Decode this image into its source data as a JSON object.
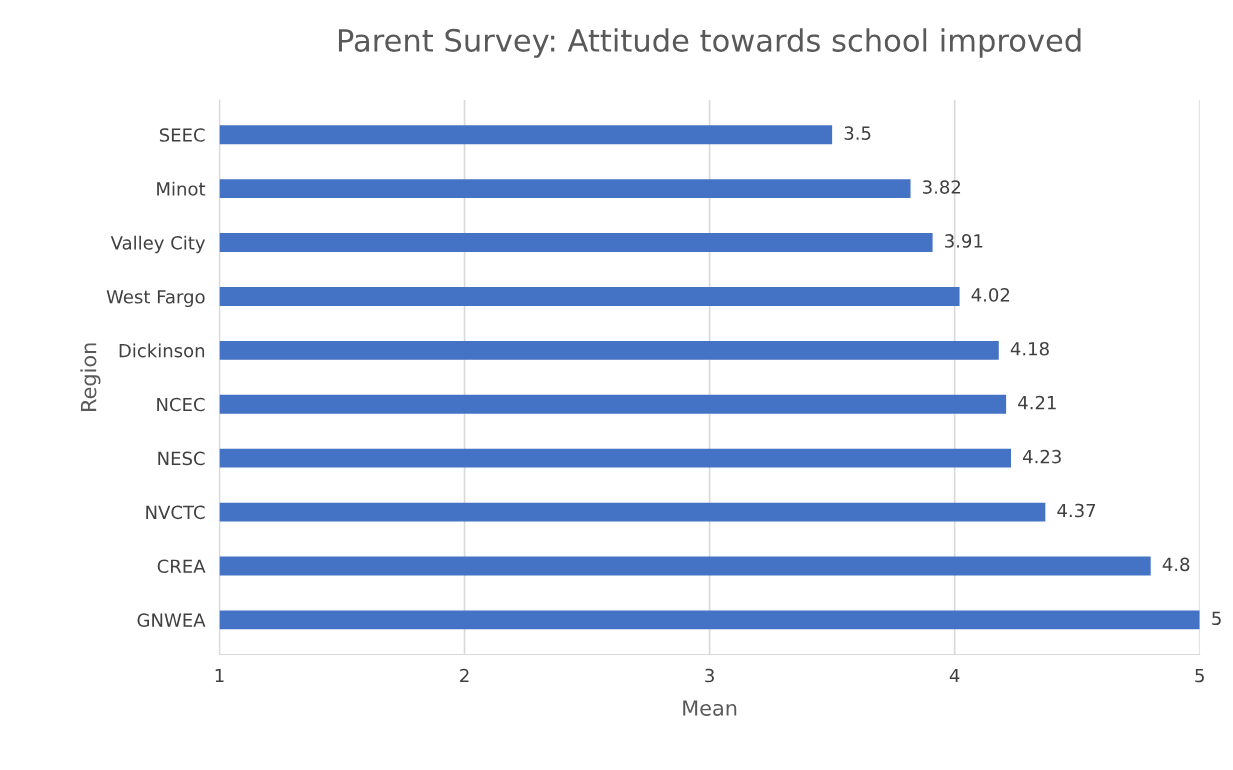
{
  "chart_data": {
    "type": "bar",
    "orientation": "horizontal",
    "title": "Parent Survey: Attitude towards school improved",
    "xlabel": "Mean",
    "ylabel": "Region",
    "categories": [
      "SEEC",
      "Minot",
      "Valley City",
      "West Fargo",
      "Dickinson",
      "NCEC",
      "NESC",
      "NVCTC",
      "CREA",
      "GNWEA"
    ],
    "values": [
      3.5,
      3.82,
      3.91,
      4.02,
      4.18,
      4.21,
      4.23,
      4.37,
      4.8,
      5
    ],
    "color": "#4472c4",
    "xlim": [
      1,
      5
    ],
    "xticks": [
      1,
      2,
      3,
      4,
      5
    ],
    "grid": "x",
    "data_labels": true
  }
}
